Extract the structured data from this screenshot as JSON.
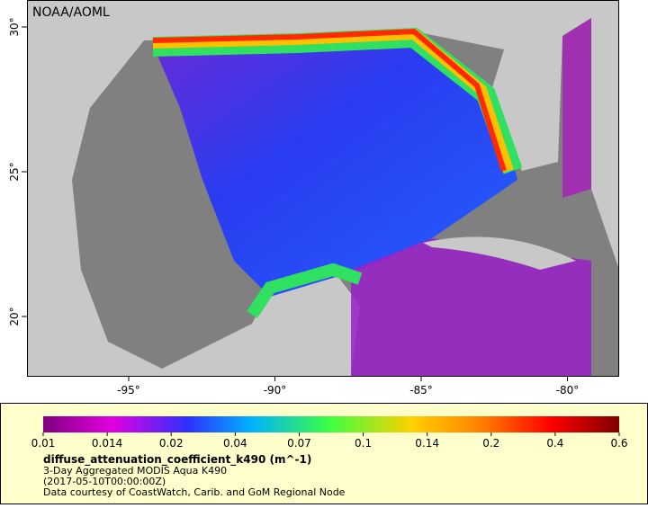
{
  "map": {
    "credit": "NOAA/AOML",
    "lon_ticks": [
      {
        "value": -95,
        "label": "-95°"
      },
      {
        "value": -90,
        "label": "-90°"
      },
      {
        "value": -85,
        "label": "-85°"
      },
      {
        "value": -80,
        "label": "-80°"
      }
    ],
    "lat_ticks": [
      {
        "value": 20,
        "label": "20°"
      },
      {
        "value": 25,
        "label": "25°"
      },
      {
        "value": 30,
        "label": "30°"
      }
    ]
  },
  "legend": {
    "ticks": [
      "0.01",
      "0.014",
      "0.02",
      "0.04",
      "0.07",
      "0.1",
      "0.14",
      "0.2",
      "0.4",
      "0.6"
    ],
    "title": "diffuse_attenuation_coefficient_k490 (m^-1)",
    "lines": [
      "3-Day Aggregated MODIS Aqua K490",
      "(2017-05-10T00:00:00Z)",
      "Data courtesy of CoastWatch, Carib. and GoM Regional Node"
    ]
  }
}
